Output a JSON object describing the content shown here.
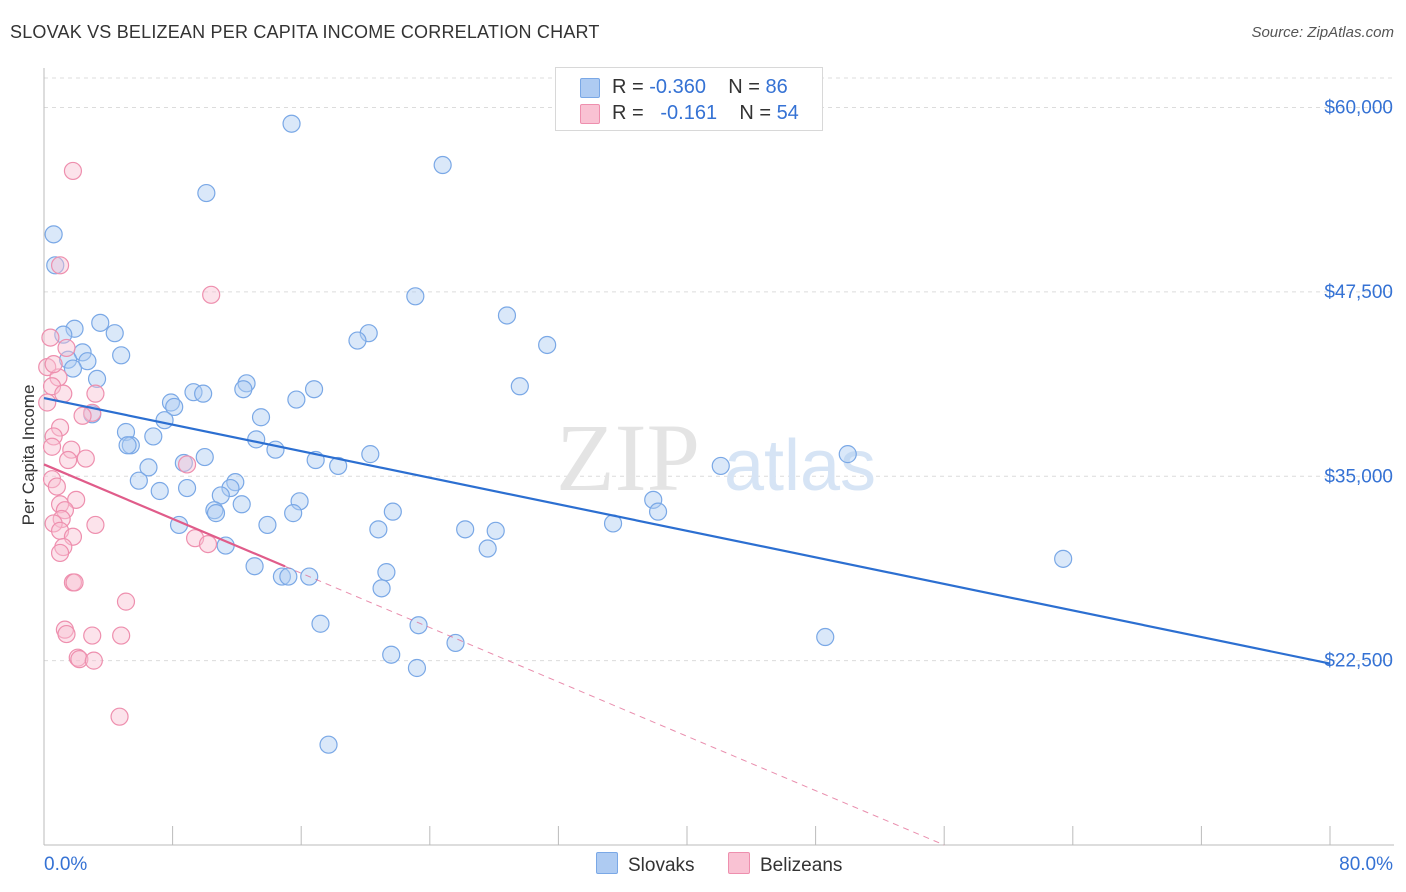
{
  "title": "SLOVAK VS BELIZEAN PER CAPITA INCOME CORRELATION CHART",
  "source": "Source: ZipAtlas.com",
  "watermark": {
    "zip": "ZIP",
    "atlas": "atlas"
  },
  "legend": {
    "rows": [
      {
        "r_label": "R =",
        "r_value": "-0.360",
        "n_label": "N =",
        "n_value": "86",
        "color": "#aecbf2",
        "stroke": "#7aa8e6"
      },
      {
        "r_label": "R =",
        "r_value": "-0.161",
        "n_label": "N =",
        "n_value": "54",
        "color": "#f9c2d3",
        "stroke": "#ee8fae"
      }
    ]
  },
  "bottom_legend": [
    {
      "label": "Slovaks",
      "color": "#aecbf2",
      "stroke": "#7aa8e6"
    },
    {
      "label": "Belizeans",
      "color": "#f9c2d3",
      "stroke": "#ee8fae"
    }
  ],
  "chart_data": {
    "type": "scatter",
    "title": "SLOVAK VS BELIZEAN PER CAPITA INCOME CORRELATION CHART",
    "xlabel": "",
    "ylabel": "Per Capita Income",
    "xlim": [
      0,
      80
    ],
    "ylim": [
      10000,
      62000
    ],
    "x_tick_labels": [
      {
        "value": 0,
        "label": "0.0%"
      },
      {
        "value": 80,
        "label": "80.0%"
      }
    ],
    "y_ticks": [
      {
        "value": 60000,
        "label": "$60,000"
      },
      {
        "value": 47500,
        "label": "$47,500"
      },
      {
        "value": 35000,
        "label": "$35,000"
      },
      {
        "value": 22500,
        "label": "$22,500"
      }
    ],
    "grid": true,
    "series": [
      {
        "name": "Slovaks",
        "color": "#aecbf2",
        "stroke": "#7aa8e6",
        "trend": {
          "x0": 0,
          "y0": 40300,
          "x1": 80,
          "y1": 22300,
          "solid_to": 80,
          "color": "#2c6fd1"
        },
        "points": [
          [
            15.4,
            58900
          ],
          [
            24.8,
            56100
          ],
          [
            10.1,
            54200
          ],
          [
            0.6,
            51400
          ],
          [
            0.7,
            49300
          ],
          [
            23.1,
            47200
          ],
          [
            28.8,
            45900
          ],
          [
            3.5,
            45400
          ],
          [
            1.9,
            45000
          ],
          [
            4.4,
            44700
          ],
          [
            1.2,
            44600
          ],
          [
            20.2,
            44700
          ],
          [
            19.5,
            44200
          ],
          [
            31.3,
            43900
          ],
          [
            2.4,
            43400
          ],
          [
            4.8,
            43200
          ],
          [
            1.5,
            42900
          ],
          [
            2.7,
            42800
          ],
          [
            1.8,
            42300
          ],
          [
            3.3,
            41600
          ],
          [
            29.6,
            41100
          ],
          [
            12.6,
            41300
          ],
          [
            16.8,
            40900
          ],
          [
            9.3,
            40700
          ],
          [
            12.4,
            40900
          ],
          [
            9.9,
            40600
          ],
          [
            15.7,
            40200
          ],
          [
            7.9,
            40000
          ],
          [
            8.1,
            39700
          ],
          [
            3.0,
            39200
          ],
          [
            13.5,
            39000
          ],
          [
            7.5,
            38800
          ],
          [
            5.1,
            38000
          ],
          [
            6.8,
            37700
          ],
          [
            13.2,
            37500
          ],
          [
            5.4,
            37100
          ],
          [
            5.2,
            37100
          ],
          [
            14.4,
            36800
          ],
          [
            50.0,
            36500
          ],
          [
            20.3,
            36500
          ],
          [
            10.0,
            36300
          ],
          [
            16.9,
            36100
          ],
          [
            8.7,
            35900
          ],
          [
            42.1,
            35700
          ],
          [
            18.3,
            35700
          ],
          [
            6.5,
            35600
          ],
          [
            5.9,
            34700
          ],
          [
            11.9,
            34600
          ],
          [
            8.9,
            34200
          ],
          [
            11.6,
            34200
          ],
          [
            7.2,
            34000
          ],
          [
            11.0,
            33700
          ],
          [
            37.9,
            33400
          ],
          [
            15.9,
            33300
          ],
          [
            12.3,
            33100
          ],
          [
            10.6,
            32700
          ],
          [
            10.7,
            32500
          ],
          [
            38.2,
            32600
          ],
          [
            21.7,
            32600
          ],
          [
            15.5,
            32500
          ],
          [
            35.4,
            31800
          ],
          [
            8.4,
            31700
          ],
          [
            13.9,
            31700
          ],
          [
            20.8,
            31400
          ],
          [
            26.2,
            31400
          ],
          [
            28.1,
            31300
          ],
          [
            11.3,
            30300
          ],
          [
            27.6,
            30100
          ],
          [
            63.4,
            29400
          ],
          [
            13.1,
            28900
          ],
          [
            21.3,
            28500
          ],
          [
            14.8,
            28200
          ],
          [
            15.2,
            28200
          ],
          [
            16.5,
            28200
          ],
          [
            21.0,
            27400
          ],
          [
            17.2,
            25000
          ],
          [
            23.3,
            24900
          ],
          [
            48.6,
            24100
          ],
          [
            25.6,
            23700
          ],
          [
            21.6,
            22900
          ],
          [
            23.2,
            22000
          ],
          [
            17.7,
            16800
          ]
        ]
      },
      {
        "name": "Belizeans",
        "color": "#f9c2d3",
        "stroke": "#ee8fae",
        "trend": {
          "x0": 0,
          "y0": 35800,
          "x1": 56,
          "y1": 10000,
          "solid_to": 15,
          "color": "#e05c8a"
        },
        "points": [
          [
            1.8,
            55700
          ],
          [
            1.0,
            49300
          ],
          [
            10.4,
            47300
          ],
          [
            0.4,
            44400
          ],
          [
            0.2,
            42400
          ],
          [
            0.9,
            41700
          ],
          [
            1.4,
            43700
          ],
          [
            0.6,
            42600
          ],
          [
            0.5,
            41100
          ],
          [
            1.2,
            40600
          ],
          [
            3.2,
            40600
          ],
          [
            0.2,
            40000
          ],
          [
            3.0,
            39300
          ],
          [
            2.4,
            39100
          ],
          [
            1.0,
            38300
          ],
          [
            0.6,
            37700
          ],
          [
            0.5,
            37000
          ],
          [
            1.7,
            36800
          ],
          [
            2.6,
            36200
          ],
          [
            1.5,
            36100
          ],
          [
            8.9,
            35800
          ],
          [
            0.5,
            34800
          ],
          [
            0.8,
            34300
          ],
          [
            2.0,
            33400
          ],
          [
            1.0,
            33100
          ],
          [
            1.3,
            32700
          ],
          [
            1.1,
            32100
          ],
          [
            0.6,
            31800
          ],
          [
            3.2,
            31700
          ],
          [
            1.0,
            31300
          ],
          [
            1.8,
            30900
          ],
          [
            9.4,
            30800
          ],
          [
            10.2,
            30400
          ],
          [
            1.2,
            30200
          ],
          [
            1.0,
            29800
          ],
          [
            1.8,
            27800
          ],
          [
            1.9,
            27800
          ],
          [
            5.1,
            26500
          ],
          [
            1.3,
            24600
          ],
          [
            1.4,
            24300
          ],
          [
            3.0,
            24200
          ],
          [
            4.8,
            24200
          ],
          [
            2.1,
            22700
          ],
          [
            2.2,
            22600
          ],
          [
            3.1,
            22500
          ],
          [
            4.7,
            18700
          ]
        ]
      }
    ]
  }
}
